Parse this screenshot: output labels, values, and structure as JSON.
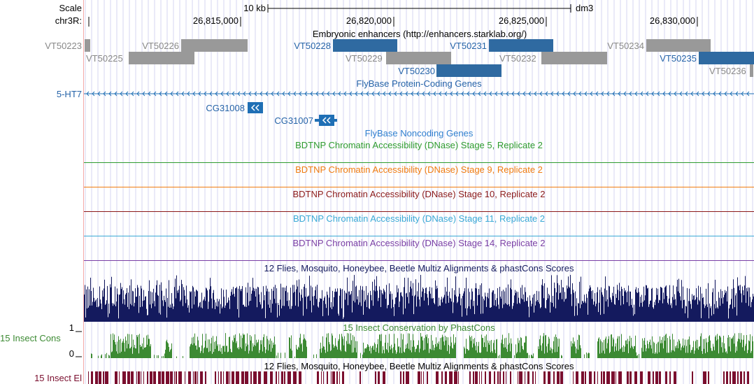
{
  "header": {
    "scale_label": "Scale",
    "scale_bar_label": "10 kb",
    "assembly": "dm3",
    "chrom_label": "chr3R:",
    "positions": [
      "26,815,000",
      "26,820,000",
      "26,825,000",
      "26,830,000"
    ]
  },
  "enhancers": {
    "title": "Embryonic enhancers (http://enhancers.starklab.org/)",
    "items": [
      {
        "name": "VT50223",
        "highlighted": false
      },
      {
        "name": "VT50226",
        "highlighted": false
      },
      {
        "name": "VT50228",
        "highlighted": true
      },
      {
        "name": "VT50231",
        "highlighted": true
      },
      {
        "name": "VT50234",
        "highlighted": false
      },
      {
        "name": "VT50225",
        "highlighted": false
      },
      {
        "name": "VT50229",
        "highlighted": false
      },
      {
        "name": "VT50232",
        "highlighted": false
      },
      {
        "name": "VT50235",
        "highlighted": true
      },
      {
        "name": "VT50230",
        "highlighted": true
      },
      {
        "name": "VT50236",
        "highlighted": false
      }
    ]
  },
  "protein_genes": {
    "title": "FlyBase Protein-Coding Genes",
    "genes": [
      "5-HT7",
      "CG31008",
      "CG31007"
    ]
  },
  "noncoding": {
    "title": "FlyBase Noncoding Genes"
  },
  "dnase_tracks": [
    {
      "title": "BDTNP Chromatin Accessibility (DNase) Stage 5, Replicate 2",
      "color": "#2f9c2f"
    },
    {
      "title": "BDTNP Chromatin Accessibility (DNase) Stage 9, Replicate 2",
      "color": "#f07c10"
    },
    {
      "title": "BDTNP Chromatin Accessibility (DNase) Stage 10, Replicate 2",
      "color": "#8b1a1a"
    },
    {
      "title": "BDTNP Chromatin Accessibility (DNase) Stage 11, Replicate 2",
      "color": "#3aa9d6"
    },
    {
      "title": "BDTNP Chromatin Accessibility (DNase) Stage 14, Replicate 2",
      "color": "#7a3fa5"
    }
  ],
  "multiz": {
    "title": "12 Flies, Mosquito, Honeybee, Beetle Multiz Alignments & phastCons Scores",
    "color": "#141a5e"
  },
  "phastcons": {
    "title": "15 Insect Conservation by PhastCons",
    "side_label": "15 Insect Cons",
    "max_label": "1",
    "min_label": "0",
    "color": "#3c8a33"
  },
  "elements": {
    "title": "12 Flies, Mosquito, Honeybee, Beetle Multiz Alignments & phastCons Scores",
    "side_label": "15 Insect El",
    "color": "#7a0e2e"
  },
  "colors": {
    "gray_text": "#888888",
    "blue_text": "#2563a8",
    "gene_blue": "#1f6fb5",
    "grid": "#d6d6f2",
    "left_margin_line": "#f3a9a9"
  }
}
